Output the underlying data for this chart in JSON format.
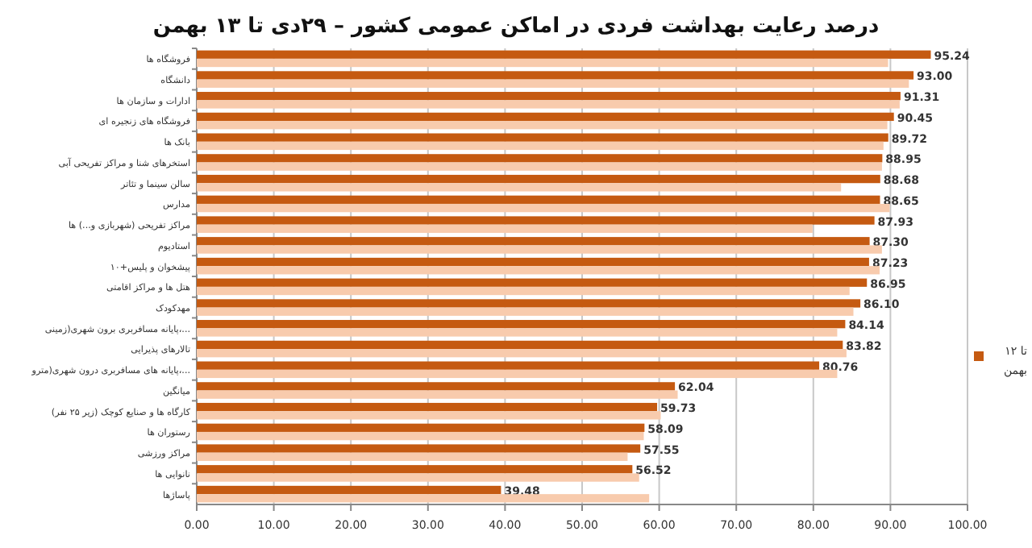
{
  "chart_data": {
    "type": "bar",
    "orientation": "horizontal",
    "title": "درصد رعایت بهداشت فردی در اماکن عمومی کشور – ۲۹دی تا ۱۳ بهمن",
    "categories": [
      "فروشگاه ها",
      "دانشگاه",
      "ادارات و سازمان ها",
      "فروشگاه های زنجیره ای",
      "بانک ها",
      "استخرهای شنا و مراکز تفریحی آبی",
      "سالن سینما و تئاتر",
      "مدارس",
      "مراکز تفریحی (شهربازی و...) ها",
      "استادیوم",
      "پیشخوان و پلیس+۱۰",
      "هتل ها و مراکز اقامتی",
      "مهدکودک",
      "پایانه مسافربری برون شهری(زمینی،...",
      "تالارهای پذیرایی",
      "پایانه های مسافربری درون شهری(مترو،...",
      "میانگین",
      "کارگاه ها و صنایع کوچک (زیر ۲۵ نفر)",
      "رستوران ها",
      "مراکز ورزشی",
      "نانوایی ها",
      "پاساژها"
    ],
    "series": [
      {
        "name": "تا ۱۲ بهمن",
        "color": "#c55a11",
        "values": [
          95.24,
          93.0,
          91.31,
          90.45,
          89.72,
          88.95,
          88.68,
          88.65,
          87.93,
          87.3,
          87.23,
          86.95,
          86.1,
          84.14,
          83.82,
          80.76,
          62.04,
          59.73,
          58.09,
          57.55,
          56.52,
          39.48
        ],
        "value_labels": [
          "95.24",
          "93.00",
          "91.31",
          "90.45",
          "89.72",
          "88.95",
          "88.68",
          "88.65",
          "87.93",
          "87.30",
          "87.23",
          "86.95",
          "86.10",
          "84.14",
          "83.82",
          "80.76",
          "62.04",
          "59.73",
          "58.09",
          "57.55",
          "56.52",
          "39.48"
        ]
      },
      {
        "color": "#f8cbad",
        "values": [
          89.7,
          92.4,
          91.2,
          89.6,
          89.1,
          88.9,
          83.6,
          89.9,
          79.9,
          88.9,
          88.6,
          84.7,
          85.2,
          83.1,
          84.3,
          83.1,
          62.4,
          60.2,
          58.0,
          55.9,
          57.4,
          58.7
        ]
      }
    ],
    "xlim": [
      0,
      100
    ],
    "xticks": [
      {
        "value": 0,
        "label": "0.00"
      },
      {
        "value": 10,
        "label": "10.00"
      },
      {
        "value": 20,
        "label": "20.00"
      },
      {
        "value": 30,
        "label": "30.00"
      },
      {
        "value": 40,
        "label": "40.00"
      },
      {
        "value": 50,
        "label": "50.00"
      },
      {
        "value": 60,
        "label": "60.00"
      },
      {
        "value": 70,
        "label": "70.00"
      },
      {
        "value": 80,
        "label": "80.00"
      },
      {
        "value": 90,
        "label": "90.00"
      },
      {
        "value": 100,
        "label": "100.00"
      }
    ],
    "grid": "x",
    "legend": "right"
  }
}
